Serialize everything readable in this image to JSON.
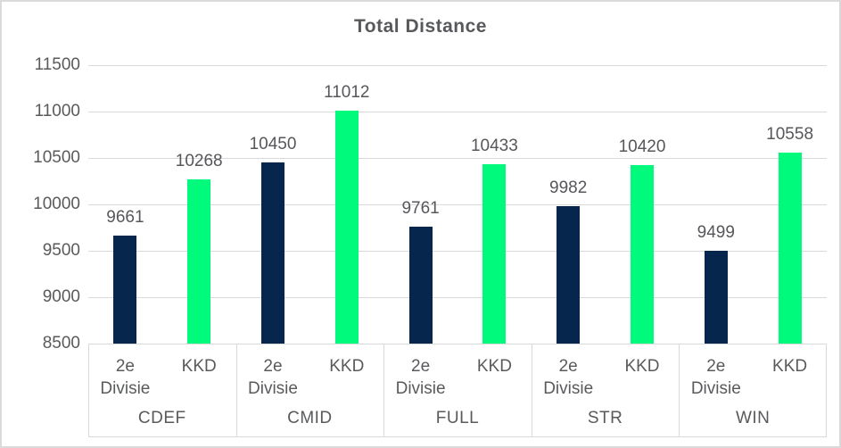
{
  "page": {
    "background": "#FFFFFF",
    "border_color": "#DADADA"
  },
  "chart_data": {
    "type": "bar",
    "title": "Total Distance",
    "xlabel": "",
    "ylabel": "",
    "categories": [
      "CDEF",
      "CMID",
      "FULL",
      "STR",
      "WIN"
    ],
    "series": [
      {
        "name": "2e Divisie",
        "color": "#06264E",
        "values": [
          9661,
          10450,
          9761,
          9982,
          9499
        ]
      },
      {
        "name": "KKD",
        "color": "#00FA7B",
        "values": [
          10268,
          11012,
          10433,
          10420,
          10558
        ]
      }
    ],
    "data_labels_visible": true,
    "ylim": [
      8500,
      11500
    ],
    "ytick_step": 500,
    "yticks": [
      "11500",
      "11000",
      "10500",
      "10000",
      "9500",
      "9000",
      "8500"
    ],
    "grid": true,
    "legend_position": "none",
    "colors": {
      "gridline": "#D9D9D9",
      "axis_text": "#595A5C",
      "data_label_text": "#56575B",
      "title_text": "#58595C"
    }
  }
}
